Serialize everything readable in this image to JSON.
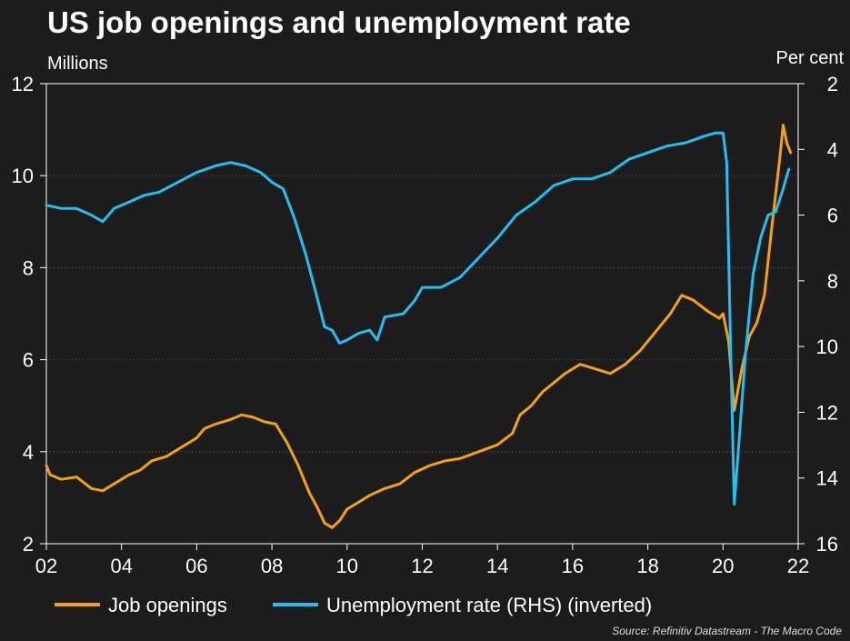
{
  "chart_data": {
    "type": "line",
    "title": "US job openings and unemployment rate",
    "ylabel_left": "Millions",
    "ylabel_right": "Per cent",
    "xlabel": "",
    "x_range": [
      2002.0,
      2022.0
    ],
    "ylim_left": [
      2,
      12
    ],
    "ylim_right": [
      2,
      16
    ],
    "right_axis_inverted": true,
    "grid": "horizontal dotted",
    "legend_position": "bottom-left",
    "x_tick_labels": [
      "02",
      "04",
      "06",
      "08",
      "10",
      "12",
      "14",
      "16",
      "18",
      "20",
      "22"
    ],
    "y_left_tick_labels": [
      "2",
      "4",
      "6",
      "8",
      "10",
      "12"
    ],
    "y_right_tick_labels": [
      "2",
      "4",
      "6",
      "8",
      "10",
      "12",
      "14",
      "16"
    ],
    "source": "Source: Refinitiv Datastream - The Macro Code",
    "series": [
      {
        "name": "Job openings",
        "axis": "left",
        "color": "#f5a01a",
        "x": [
          2002.0,
          2002.1,
          2002.4,
          2002.8,
          2003.2,
          2003.5,
          2003.8,
          2004.2,
          2004.5,
          2004.8,
          2005.2,
          2005.6,
          2006.0,
          2006.2,
          2006.5,
          2006.9,
          2007.2,
          2007.5,
          2007.8,
          2008.1,
          2008.4,
          2008.7,
          2009.0,
          2009.2,
          2009.4,
          2009.6,
          2009.8,
          2010.0,
          2010.3,
          2010.6,
          2011.0,
          2011.4,
          2011.8,
          2012.2,
          2012.6,
          2013.0,
          2013.5,
          2014.0,
          2014.4,
          2014.6,
          2014.9,
          2015.2,
          2015.5,
          2015.8,
          2016.2,
          2016.6,
          2017.0,
          2017.4,
          2017.8,
          2018.2,
          2018.6,
          2018.9,
          2019.2,
          2019.6,
          2019.9,
          2020.0,
          2020.15,
          2020.3,
          2020.5,
          2020.7,
          2020.9,
          2021.1,
          2021.3,
          2021.5,
          2021.6,
          2021.7,
          2021.8
        ],
        "values": [
          3.7,
          3.5,
          3.4,
          3.45,
          3.2,
          3.15,
          3.3,
          3.5,
          3.6,
          3.8,
          3.9,
          4.1,
          4.3,
          4.5,
          4.6,
          4.7,
          4.8,
          4.75,
          4.65,
          4.6,
          4.2,
          3.7,
          3.1,
          2.8,
          2.45,
          2.35,
          2.5,
          2.75,
          2.9,
          3.05,
          3.2,
          3.3,
          3.55,
          3.7,
          3.8,
          3.85,
          4.0,
          4.15,
          4.4,
          4.8,
          5.0,
          5.3,
          5.5,
          5.7,
          5.9,
          5.8,
          5.7,
          5.9,
          6.2,
          6.6,
          7.0,
          7.4,
          7.3,
          7.05,
          6.9,
          7.0,
          6.4,
          4.9,
          5.8,
          6.5,
          6.8,
          7.4,
          8.9,
          10.3,
          11.1,
          10.7,
          10.5
        ]
      },
      {
        "name": "Unemployment rate (RHS) (inverted)",
        "axis": "right",
        "color": "#26bdf2",
        "x": [
          2002.0,
          2002.4,
          2002.8,
          2003.2,
          2003.5,
          2003.8,
          2004.2,
          2004.6,
          2005.0,
          2005.5,
          2006.0,
          2006.5,
          2006.9,
          2007.3,
          2007.7,
          2008.0,
          2008.3,
          2008.6,
          2008.9,
          2009.2,
          2009.4,
          2009.6,
          2009.8,
          2010.0,
          2010.3,
          2010.6,
          2010.8,
          2011.0,
          2011.5,
          2011.8,
          2012.0,
          2012.5,
          2013.0,
          2013.5,
          2014.0,
          2014.5,
          2015.0,
          2015.5,
          2016.0,
          2016.5,
          2017.0,
          2017.5,
          2018.0,
          2018.5,
          2019.0,
          2019.5,
          2019.8,
          2020.0,
          2020.1,
          2020.2,
          2020.3,
          2020.4,
          2020.6,
          2020.8,
          2021.0,
          2021.2,
          2021.4,
          2021.6,
          2021.75
        ],
        "values": [
          5.7,
          5.8,
          5.8,
          6.0,
          6.2,
          5.8,
          5.6,
          5.4,
          5.3,
          5.0,
          4.7,
          4.5,
          4.4,
          4.5,
          4.7,
          5.0,
          5.2,
          6.1,
          7.2,
          8.5,
          9.4,
          9.5,
          9.9,
          9.8,
          9.6,
          9.5,
          9.8,
          9.1,
          9.0,
          8.6,
          8.2,
          8.2,
          7.9,
          7.3,
          6.7,
          6.0,
          5.6,
          5.1,
          4.9,
          4.9,
          4.7,
          4.3,
          4.1,
          3.9,
          3.8,
          3.6,
          3.5,
          3.5,
          4.4,
          10.0,
          14.8,
          13.3,
          10.2,
          7.8,
          6.7,
          6.0,
          5.9,
          5.2,
          4.6
        ]
      }
    ]
  }
}
